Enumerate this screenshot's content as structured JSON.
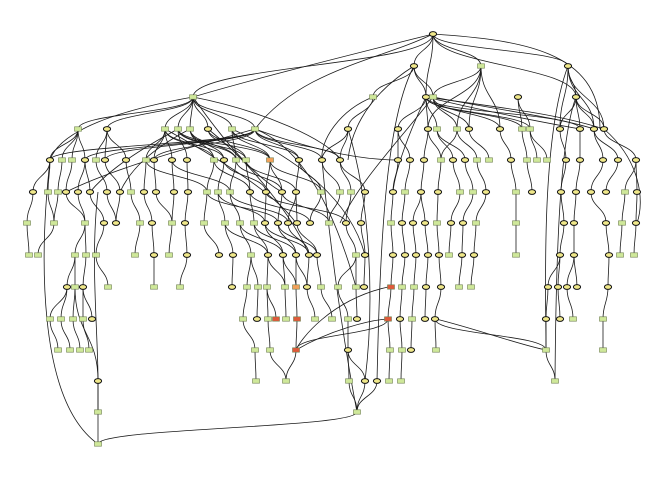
{
  "diagram": {
    "type": "layered-directed-graph",
    "background": "#ffffff",
    "edge_color": "#1a1a1a",
    "node_styles": {
      "ellipse": {
        "fill": "#f0e88a",
        "stroke": "#111111"
      },
      "box": {
        "fill": "#cfe89a",
        "stroke": "#6f7f4f"
      },
      "box_highlight": {
        "fill": "#e05a3a"
      },
      "box_orange": {
        "fill": "#f2a15a"
      }
    },
    "labels_visible": false
  }
}
